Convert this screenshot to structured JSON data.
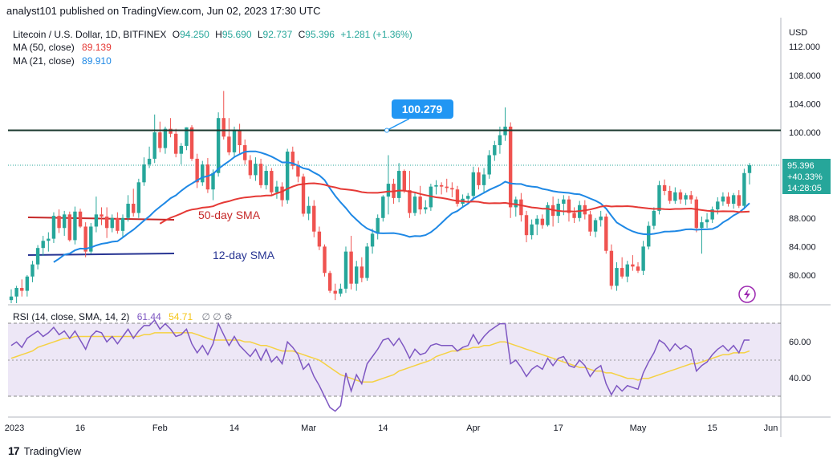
{
  "header": {
    "publisher_line": "analyst101 published on TradingView.com, Jun 02, 2023 17:30 UTC"
  },
  "legend": {
    "symbol": "Litecoin / U.S. Dollar, 1D, BITFINEX",
    "ohlc_o_label": "O",
    "ohlc_o": "94.250",
    "ohlc_h_label": "H",
    "ohlc_h": "95.690",
    "ohlc_l_label": "L",
    "ohlc_l": "92.737",
    "ohlc_c_label": "C",
    "ohlc_c": "95.396",
    "change": "+1.281 (+1.36%)",
    "ma50_label": "MA (50, close)",
    "ma50_value": "89.139",
    "ma21_label": "MA (21, close)",
    "ma21_value": "89.910"
  },
  "price_scale": {
    "currency": "USD",
    "tick_labels": [
      "112.000",
      "108.000",
      "104.000",
      "100.000",
      "88.000",
      "84.000",
      "80.000"
    ],
    "last_price": "95.396",
    "last_change_pct": "+40.33%",
    "countdown": "14:28:05"
  },
  "annotations": {
    "resistance_label": "100.279",
    "sma50_text": "50-day SMA",
    "sma12_text": "12-day SMA"
  },
  "rsi": {
    "legend_label": "RSI (14, close, SMA, 14, 2)",
    "value": "61.44",
    "sma_value": "54.71",
    "tick_labels": [
      "60.00",
      "40.00"
    ]
  },
  "time_axis": {
    "labels": [
      "2023",
      "16",
      "Feb",
      "14",
      "Mar",
      "14",
      "Apr",
      "17",
      "May",
      "15",
      "Jun"
    ]
  },
  "footer": {
    "brand": "TradingView"
  },
  "colors": {
    "up": "#26a69a",
    "down": "#ef5350",
    "ma50": "#e53935",
    "ma21": "#1e88e5",
    "resistance": "#1b3a2f",
    "rsi_line": "#7e57c2",
    "rsi_sma": "#f5d142",
    "label_blue": "#2196f3"
  },
  "chart_data": {
    "type": "candlestick",
    "title": "Litecoin / U.S. Dollar, 1D, BITFINEX",
    "y_range": [
      77.5,
      115
    ],
    "x_labels": [
      "2023",
      "16",
      "Feb",
      "14",
      "Mar",
      "14",
      "Apr",
      "17",
      "May",
      "15",
      "Jun"
    ],
    "resistance_level": 100.279,
    "ohlc": [
      [
        76.5,
        78.0,
        75.5,
        77.0
      ],
      [
        77.0,
        78.5,
        75.8,
        78.2
      ],
      [
        78.2,
        79.4,
        77.0,
        77.8
      ],
      [
        77.8,
        80.0,
        77.0,
        79.8
      ],
      [
        79.8,
        82.0,
        79.0,
        81.5
      ],
      [
        81.5,
        84.2,
        80.8,
        83.8
      ],
      [
        83.8,
        85.5,
        82.7,
        84.8
      ],
      [
        84.8,
        86.0,
        83.3,
        85.1
      ],
      [
        85.1,
        88.8,
        84.5,
        88.3
      ],
      [
        88.3,
        89.2,
        85.9,
        86.6
      ],
      [
        86.6,
        89.0,
        85.5,
        88.5
      ],
      [
        88.5,
        88.9,
        84.7,
        84.9
      ],
      [
        84.9,
        89.6,
        84.3,
        88.9
      ],
      [
        88.9,
        89.3,
        86.6,
        86.8
      ],
      [
        86.8,
        87.4,
        82.5,
        83.3
      ],
      [
        83.3,
        87.3,
        83.0,
        86.8
      ],
      [
        86.8,
        91.0,
        86.0,
        88.5
      ],
      [
        88.5,
        89.5,
        87.0,
        88.2
      ],
      [
        88.2,
        89.5,
        85.2,
        86.6
      ],
      [
        86.6,
        88.5,
        86.0,
        88.0
      ],
      [
        88.0,
        88.8,
        85.8,
        86.2
      ],
      [
        86.2,
        88.5,
        85.3,
        88.0
      ],
      [
        88.0,
        91.2,
        87.5,
        90.0
      ],
      [
        90.0,
        92.1,
        88.2,
        88.7
      ],
      [
        88.7,
        93.5,
        88.0,
        93.0
      ],
      [
        93.0,
        96.5,
        92.5,
        95.5
      ],
      [
        95.5,
        98.0,
        95.0,
        96.3
      ],
      [
        96.3,
        102.5,
        95.7,
        100.0
      ],
      [
        100.0,
        101.5,
        97.2,
        97.8
      ],
      [
        97.8,
        100.8,
        97.0,
        100.5
      ],
      [
        100.5,
        102.0,
        99.3,
        99.8
      ],
      [
        99.8,
        100.5,
        96.5,
        97.0
      ],
      [
        97.0,
        98.5,
        95.5,
        98.1
      ],
      [
        98.1,
        100.7,
        97.5,
        100.7
      ],
      [
        100.7,
        101.0,
        96.0,
        96.3
      ],
      [
        96.3,
        97.0,
        92.2,
        93.0
      ],
      [
        93.0,
        96.0,
        92.5,
        95.5
      ],
      [
        95.5,
        96.4,
        91.5,
        92.0
      ],
      [
        92.0,
        94.8,
        90.5,
        94.3
      ],
      [
        94.3,
        102.8,
        93.8,
        102.0
      ],
      [
        102.0,
        105.8,
        99.0,
        99.4
      ],
      [
        99.4,
        102.0,
        96.8,
        97.2
      ],
      [
        97.2,
        100.8,
        96.5,
        100.3
      ],
      [
        100.3,
        101.2,
        97.0,
        98.2
      ],
      [
        98.2,
        99.0,
        95.5,
        96.1
      ],
      [
        96.1,
        96.8,
        93.5,
        94.0
      ],
      [
        94.0,
        96.5,
        93.2,
        95.6
      ],
      [
        95.6,
        96.3,
        92.2,
        92.6
      ],
      [
        92.6,
        95.3,
        92.0,
        94.6
      ],
      [
        94.6,
        95.0,
        91.2,
        91.6
      ],
      [
        91.6,
        93.2,
        90.7,
        92.4
      ],
      [
        92.4,
        93.0,
        89.6,
        90.5
      ],
      [
        90.5,
        97.7,
        90.0,
        97.3
      ],
      [
        97.3,
        98.0,
        94.8,
        95.3
      ],
      [
        95.3,
        96.0,
        93.0,
        93.8
      ],
      [
        93.8,
        94.2,
        88.2,
        88.6
      ],
      [
        88.6,
        91.0,
        87.7,
        89.7
      ],
      [
        89.7,
        90.5,
        85.3,
        86.1
      ],
      [
        86.1,
        86.8,
        83.5,
        84.0
      ],
      [
        84.0,
        84.3,
        79.8,
        80.3
      ],
      [
        80.3,
        80.6,
        77.5,
        77.8
      ],
      [
        77.8,
        78.8,
        76.5,
        77.4
      ],
      [
        77.4,
        78.8,
        77.0,
        78.1
      ],
      [
        78.1,
        84.0,
        77.5,
        83.3
      ],
      [
        83.3,
        85.5,
        78.0,
        78.8
      ],
      [
        78.8,
        82.0,
        77.8,
        81.2
      ],
      [
        81.2,
        82.5,
        79.0,
        79.6
      ],
      [
        79.6,
        84.5,
        79.2,
        84.0
      ],
      [
        84.0,
        86.5,
        83.0,
        85.8
      ],
      [
        85.8,
        88.5,
        85.0,
        88.0
      ],
      [
        88.0,
        91.2,
        87.5,
        91.0
      ],
      [
        91.0,
        96.8,
        88.5,
        92.8
      ],
      [
        92.8,
        93.5,
        90.0,
        90.8
      ],
      [
        90.8,
        95.7,
        90.2,
        94.6
      ],
      [
        94.6,
        94.8,
        91.5,
        91.9
      ],
      [
        91.9,
        94.6,
        88.0,
        88.7
      ],
      [
        88.7,
        91.5,
        88.3,
        91.0
      ],
      [
        91.0,
        92.5,
        88.5,
        89.2
      ],
      [
        89.2,
        90.5,
        88.6,
        89.5
      ],
      [
        89.5,
        92.8,
        89.0,
        92.4
      ],
      [
        92.4,
        93.3,
        91.3,
        92.6
      ],
      [
        92.6,
        93.0,
        91.3,
        92.4
      ],
      [
        92.4,
        93.5,
        91.6,
        92.2
      ],
      [
        92.2,
        93.0,
        90.9,
        92.0
      ],
      [
        92.0,
        92.5,
        89.6,
        90.0
      ],
      [
        90.0,
        91.3,
        89.5,
        90.7
      ],
      [
        90.7,
        91.5,
        90.2,
        91.1
      ],
      [
        91.1,
        95.2,
        90.5,
        94.4
      ],
      [
        94.4,
        95.1,
        92.0,
        92.6
      ],
      [
        92.6,
        95.0,
        91.6,
        94.1
      ],
      [
        94.1,
        97.5,
        93.5,
        96.8
      ],
      [
        96.8,
        98.8,
        96.0,
        98.2
      ],
      [
        98.2,
        100.8,
        97.0,
        99.6
      ],
      [
        99.6,
        103.5,
        98.8,
        100.8
      ],
      [
        100.8,
        101.4,
        88.0,
        89.5
      ],
      [
        89.5,
        91.0,
        88.2,
        90.6
      ],
      [
        90.6,
        91.5,
        87.5,
        88.4
      ],
      [
        88.4,
        89.0,
        84.6,
        85.6
      ],
      [
        85.6,
        87.8,
        85.0,
        87.1
      ],
      [
        87.1,
        88.4,
        85.6,
        87.9
      ],
      [
        87.9,
        88.5,
        86.5,
        87.0
      ],
      [
        87.0,
        90.2,
        86.8,
        89.8
      ],
      [
        89.8,
        91.0,
        86.8,
        88.3
      ],
      [
        88.3,
        90.7,
        87.3,
        90.0
      ],
      [
        90.0,
        91.2,
        88.4,
        90.6
      ],
      [
        90.6,
        91.1,
        87.5,
        88.7
      ],
      [
        88.7,
        89.5,
        87.3,
        88.0
      ],
      [
        88.0,
        90.4,
        87.5,
        89.8
      ],
      [
        89.8,
        90.5,
        87.8,
        88.5
      ],
      [
        88.5,
        89.0,
        85.5,
        86.1
      ],
      [
        86.1,
        88.0,
        85.3,
        87.7
      ],
      [
        87.7,
        89.0,
        86.8,
        88.2
      ],
      [
        88.2,
        88.6,
        83.0,
        83.4
      ],
      [
        83.4,
        84.3,
        78.0,
        78.5
      ],
      [
        78.5,
        81.8,
        77.8,
        81.0
      ],
      [
        81.0,
        82.5,
        79.5,
        79.8
      ],
      [
        79.8,
        82.0,
        79.0,
        81.5
      ],
      [
        81.5,
        82.8,
        80.6,
        81.2
      ],
      [
        81.2,
        81.8,
        80.3,
        80.6
      ],
      [
        80.6,
        84.8,
        80.0,
        84.0
      ],
      [
        84.0,
        87.5,
        83.6,
        86.9
      ],
      [
        86.9,
        89.5,
        86.4,
        89.0
      ],
      [
        89.0,
        93.2,
        88.5,
        92.6
      ],
      [
        92.6,
        93.4,
        91.2,
        91.8
      ],
      [
        91.8,
        92.5,
        90.0,
        90.4
      ],
      [
        90.4,
        92.3,
        90.0,
        91.6
      ],
      [
        91.6,
        92.0,
        90.0,
        90.6
      ],
      [
        90.6,
        91.5,
        89.8,
        91.2
      ],
      [
        91.2,
        91.8,
        90.0,
        90.6
      ],
      [
        90.6,
        91.0,
        86.0,
        86.6
      ],
      [
        86.6,
        88.2,
        83.0,
        87.4
      ],
      [
        87.4,
        88.7,
        86.6,
        87.8
      ],
      [
        87.8,
        89.6,
        87.3,
        89.2
      ],
      [
        89.2,
        90.9,
        88.5,
        90.3
      ],
      [
        90.3,
        91.6,
        89.7,
        91.0
      ],
      [
        91.0,
        91.6,
        89.6,
        90.0
      ],
      [
        90.0,
        91.5,
        89.3,
        91.2
      ],
      [
        91.2,
        91.9,
        89.4,
        89.7
      ],
      [
        89.7,
        94.9,
        89.2,
        94.3
      ],
      [
        94.3,
        95.7,
        92.7,
        95.4
      ]
    ],
    "rsi": [
      58,
      60,
      57,
      62,
      64,
      66,
      63,
      65,
      68,
      64,
      66,
      62,
      66,
      61,
      56,
      63,
      66,
      65,
      60,
      63,
      59,
      63,
      67,
      62,
      66,
      69,
      69,
      72,
      67,
      70,
      67,
      63,
      64,
      67,
      59,
      54,
      58,
      53,
      59,
      70,
      64,
      58,
      63,
      58,
      55,
      52,
      56,
      50,
      56,
      49,
      52,
      48,
      60,
      57,
      53,
      45,
      48,
      41,
      36,
      30,
      24,
      22,
      25,
      43,
      33,
      42,
      37,
      48,
      52,
      56,
      61,
      62,
      58,
      62,
      57,
      51,
      56,
      53,
      54,
      58,
      59,
      58,
      58,
      58,
      55,
      57,
      58,
      64,
      59,
      63,
      66,
      68,
      70,
      70,
      48,
      50,
      46,
      41,
      45,
      47,
      45,
      51,
      47,
      51,
      52,
      47,
      46,
      50,
      47,
      41,
      45,
      47,
      37,
      31,
      36,
      33,
      36,
      35,
      34,
      43,
      49,
      54,
      61,
      59,
      55,
      59,
      56,
      58,
      56,
      44,
      47,
      49,
      53,
      56,
      58,
      55,
      58,
      54,
      61,
      61
    ],
    "rsi_sma": [
      51,
      52,
      53,
      54,
      55,
      57,
      58,
      59,
      60,
      61,
      62,
      62,
      63,
      63,
      63,
      63,
      63,
      63,
      63,
      63,
      63,
      63,
      63,
      63,
      63,
      64,
      64,
      65,
      65,
      65,
      65,
      65,
      65,
      65,
      65,
      64,
      63,
      62,
      61,
      61,
      61,
      61,
      61,
      61,
      60,
      60,
      59,
      58,
      58,
      57,
      56,
      55,
      55,
      55,
      54,
      53,
      52,
      51,
      50,
      48,
      46,
      44,
      42,
      41,
      40,
      39,
      38,
      38,
      38,
      39,
      40,
      41,
      42,
      44,
      45,
      46,
      47,
      48,
      49,
      50,
      52,
      53,
      54,
      55,
      55,
      56,
      56,
      57,
      57,
      58,
      58,
      59,
      60,
      60,
      59,
      58,
      57,
      56,
      55,
      54,
      53,
      52,
      51,
      50,
      49,
      48,
      47,
      46,
      46,
      45,
      44,
      44,
      43,
      43,
      42,
      41,
      40,
      40,
      39,
      40,
      40,
      41,
      42,
      43,
      44,
      45,
      46,
      47,
      48,
      48,
      49,
      50,
      51,
      52,
      53,
      53,
      54,
      54,
      54,
      55
    ]
  }
}
